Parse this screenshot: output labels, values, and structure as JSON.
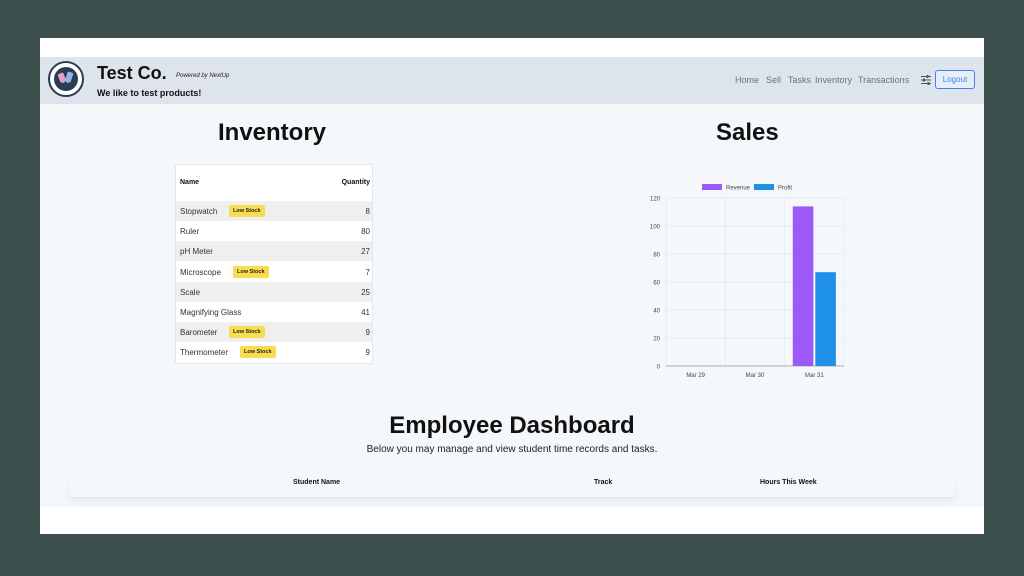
{
  "header": {
    "brand": "Test Co.",
    "powered_by": "Powered by NextUp",
    "tagline": "We like to test products!",
    "nav": [
      "Home",
      "Sell",
      "Tasks",
      "Inventory",
      "Transactions"
    ],
    "logout_label": "Logout",
    "settings_icon": "sliders-icon"
  },
  "inventory": {
    "title": "Inventory",
    "columns": [
      "Name",
      "Quantity"
    ],
    "badge_label": "Low Stock",
    "rows": [
      {
        "name": "Stopwatch",
        "qty": "8",
        "low_stock": true
      },
      {
        "name": "Ruler",
        "qty": "80",
        "low_stock": false
      },
      {
        "name": "pH Meter",
        "qty": "27",
        "low_stock": false
      },
      {
        "name": "Microscope",
        "qty": "7",
        "low_stock": true
      },
      {
        "name": "Scale",
        "qty": "25",
        "low_stock": false
      },
      {
        "name": "Magnifying Glass",
        "qty": "41",
        "low_stock": false
      },
      {
        "name": "Barometer",
        "qty": "9",
        "low_stock": true
      },
      {
        "name": "Thermometer",
        "qty": "9",
        "low_stock": true
      }
    ]
  },
  "sales": {
    "title": "Sales",
    "chart_data": {
      "type": "bar",
      "categories": [
        "Mar 29",
        "Mar 30",
        "Mar 31"
      ],
      "series": [
        {
          "name": "Revenue",
          "color": "#9b59f6",
          "values": [
            0,
            0,
            114
          ]
        },
        {
          "name": "Profit",
          "color": "#1e90e6",
          "values": [
            0,
            0,
            67
          ]
        }
      ],
      "ylim": [
        0,
        120
      ],
      "yticks": [
        0,
        20,
        40,
        60,
        80,
        100,
        120
      ],
      "grid": true,
      "legend": "top"
    }
  },
  "dashboard": {
    "title": "Employee Dashboard",
    "subtitle": "Below you may manage and view student time records and tasks.",
    "columns": [
      "Student Name",
      "Track",
      "Hours This Week"
    ]
  }
}
